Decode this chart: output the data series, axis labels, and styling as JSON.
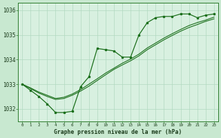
{
  "title": "Graphe pression niveau de la mer (hPa)",
  "fig_bg": "#c8e8d0",
  "ax_bg": "#d8f0e0",
  "grid_color": "#b0d8c0",
  "line_color": "#1a6e1a",
  "x_values": [
    0,
    1,
    2,
    3,
    4,
    5,
    6,
    7,
    8,
    9,
    10,
    11,
    12,
    13,
    14,
    15,
    16,
    17,
    18,
    19,
    20,
    21,
    22,
    23
  ],
  "y_main": [
    1033.0,
    1032.75,
    1032.5,
    1032.2,
    1031.85,
    1031.85,
    1031.9,
    1032.9,
    1033.3,
    1034.45,
    1034.4,
    1034.35,
    1034.1,
    1034.1,
    1035.0,
    1035.5,
    1035.7,
    1035.75,
    1035.75,
    1035.85,
    1035.85,
    1035.7,
    1035.8,
    1035.85
  ],
  "y_smooth1": [
    1033.0,
    1032.82,
    1032.64,
    1032.5,
    1032.38,
    1032.42,
    1032.55,
    1032.72,
    1032.92,
    1033.15,
    1033.38,
    1033.6,
    1033.78,
    1033.95,
    1034.15,
    1034.4,
    1034.6,
    1034.8,
    1034.98,
    1035.15,
    1035.3,
    1035.42,
    1035.55,
    1035.65
  ],
  "y_smooth2": [
    1033.0,
    1032.85,
    1032.68,
    1032.55,
    1032.42,
    1032.47,
    1032.6,
    1032.78,
    1033.0,
    1033.22,
    1033.45,
    1033.65,
    1033.85,
    1034.02,
    1034.22,
    1034.47,
    1034.67,
    1034.87,
    1035.05,
    1035.22,
    1035.38,
    1035.5,
    1035.6,
    1035.72
  ],
  "ylim": [
    1031.5,
    1036.3
  ],
  "yticks": [
    1032,
    1033,
    1034,
    1035,
    1036
  ],
  "xlim": [
    -0.5,
    23.5
  ]
}
